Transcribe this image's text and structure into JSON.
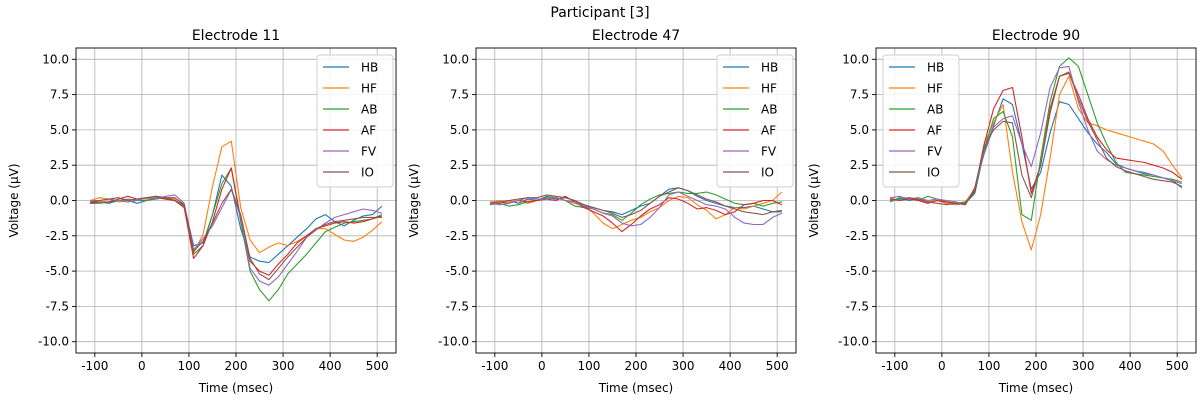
{
  "figure": {
    "suptitle": "Participant [3]"
  },
  "colors": {
    "HB": "#1f77b4",
    "HF": "#ff7f0e",
    "AB": "#2ca02c",
    "AF": "#d62728",
    "FV": "#9467bd",
    "IO": "#8c564b",
    "grid": "#b0b0b0",
    "axis": "#000000"
  },
  "chart_data": [
    {
      "type": "line",
      "title": "Electrode 11",
      "xlabel": "Time (msec)",
      "ylabel": "Voltage (µV)",
      "xlim": [
        -140,
        540
      ],
      "ylim": [
        -10.8,
        10.8
      ],
      "xticks": [
        -100,
        0,
        100,
        200,
        300,
        400,
        500
      ],
      "yticks": [
        -10.0,
        -7.5,
        -5.0,
        -2.5,
        0.0,
        2.5,
        5.0,
        7.5,
        10.0
      ],
      "grid": true,
      "legend_position": "top-right",
      "x": [
        -110,
        -90,
        -70,
        -50,
        -30,
        -10,
        10,
        30,
        50,
        70,
        90,
        110,
        130,
        150,
        170,
        190,
        210,
        230,
        250,
        270,
        290,
        310,
        330,
        350,
        370,
        390,
        410,
        430,
        450,
        470,
        490,
        510
      ],
      "series": [
        {
          "name": "HB",
          "values": [
            -0.1,
            -0.1,
            -0.2,
            0.0,
            0.0,
            -0.2,
            0.0,
            0.2,
            0.1,
            0.0,
            -0.3,
            -3.2,
            -3.0,
            -1.0,
            1.8,
            1.0,
            -2.0,
            -4.0,
            -4.3,
            -4.4,
            -3.8,
            -3.2,
            -2.6,
            -2.0,
            -1.3,
            -1.0,
            -1.5,
            -1.8,
            -1.4,
            -1.1,
            -1.0,
            -0.4
          ]
        },
        {
          "name": "HF",
          "values": [
            0.0,
            0.2,
            0.1,
            -0.1,
            0.0,
            0.1,
            0.1,
            0.3,
            0.2,
            0.1,
            -0.5,
            -3.7,
            -2.4,
            1.0,
            3.8,
            4.2,
            -0.5,
            -2.8,
            -3.7,
            -3.3,
            -3.0,
            -3.2,
            -2.9,
            -2.5,
            -2.0,
            -2.0,
            -2.4,
            -2.8,
            -2.9,
            -2.6,
            -2.1,
            -1.5
          ]
        },
        {
          "name": "AB",
          "values": [
            -0.2,
            -0.2,
            -0.1,
            0.0,
            0.1,
            0.0,
            0.0,
            0.1,
            0.2,
            0.0,
            -0.4,
            -3.8,
            -3.2,
            -1.0,
            1.2,
            2.3,
            -1.5,
            -5.0,
            -6.3,
            -7.1,
            -6.3,
            -5.2,
            -4.5,
            -3.8,
            -3.0,
            -2.2,
            -1.9,
            -1.6,
            -1.5,
            -1.4,
            -1.3,
            -1.0
          ]
        },
        {
          "name": "AF",
          "values": [
            -0.2,
            -0.1,
            -0.1,
            0.1,
            0.3,
            0.1,
            0.2,
            0.3,
            0.1,
            0.0,
            -0.5,
            -4.1,
            -3.2,
            -1.5,
            0.8,
            2.3,
            -1.3,
            -4.3,
            -5.0,
            -5.3,
            -4.5,
            -3.8,
            -3.0,
            -2.5,
            -2.0,
            -1.8,
            -1.6,
            -1.5,
            -1.6,
            -1.5,
            -1.3,
            -1.1
          ]
        },
        {
          "name": "FV",
          "values": [
            0.0,
            0.0,
            0.1,
            0.0,
            -0.1,
            0.0,
            0.2,
            0.1,
            0.3,
            0.4,
            -0.2,
            -3.5,
            -2.7,
            -1.8,
            -0.5,
            0.8,
            -1.2,
            -4.8,
            -5.7,
            -6.0,
            -5.4,
            -4.5,
            -3.6,
            -2.6,
            -2.1,
            -1.6,
            -1.2,
            -1.0,
            -0.8,
            -0.6,
            -0.7,
            -0.9
          ]
        },
        {
          "name": "IO",
          "values": [
            -0.1,
            0.0,
            0.1,
            0.2,
            0.0,
            0.1,
            0.2,
            0.3,
            0.2,
            0.2,
            -0.3,
            -3.6,
            -2.9,
            -1.6,
            -0.2,
            0.8,
            -1.0,
            -4.1,
            -5.2,
            -5.6,
            -4.8,
            -4.0,
            -3.3,
            -2.6,
            -2.0,
            -1.7,
            -1.5,
            -1.4,
            -1.3,
            -1.2,
            -1.2,
            -1.2
          ]
        }
      ]
    },
    {
      "type": "line",
      "title": "Electrode 47",
      "xlabel": "Time (msec)",
      "ylabel": "Voltage (µV)",
      "xlim": [
        -140,
        540
      ],
      "ylim": [
        -10.8,
        10.8
      ],
      "xticks": [
        -100,
        0,
        100,
        200,
        300,
        400,
        500
      ],
      "yticks": [
        -10.0,
        -7.5,
        -5.0,
        -2.5,
        0.0,
        2.5,
        5.0,
        7.5,
        10.0
      ],
      "grid": true,
      "legend_position": "top-right",
      "x": [
        -110,
        -90,
        -70,
        -50,
        -30,
        -10,
        10,
        30,
        50,
        70,
        90,
        110,
        130,
        150,
        170,
        190,
        210,
        230,
        250,
        270,
        290,
        310,
        330,
        350,
        370,
        390,
        410,
        430,
        450,
        470,
        490,
        510
      ],
      "series": [
        {
          "name": "HB",
          "values": [
            -0.2,
            -0.1,
            0.0,
            -0.2,
            0.1,
            0.0,
            0.2,
            0.1,
            0.2,
            0.0,
            -0.4,
            -0.5,
            -0.7,
            -0.8,
            -1.0,
            -0.7,
            -0.4,
            -0.2,
            0.3,
            0.8,
            0.9,
            0.7,
            0.3,
            0.0,
            -0.2,
            -0.4,
            -0.5,
            -0.5,
            -0.4,
            -0.6,
            -0.8,
            -0.8
          ]
        },
        {
          "name": "HF",
          "values": [
            -0.1,
            0.0,
            -0.1,
            0.0,
            -0.2,
            0.0,
            0.1,
            0.2,
            0.0,
            -0.2,
            -0.4,
            -0.9,
            -1.6,
            -2.0,
            -1.7,
            -1.4,
            -1.2,
            -0.8,
            -0.5,
            0.0,
            0.3,
            0.2,
            -0.3,
            -0.7,
            -1.3,
            -1.0,
            -0.5,
            -0.6,
            -0.4,
            -0.2,
            0.0,
            0.6
          ]
        },
        {
          "name": "AB",
          "values": [
            -0.3,
            -0.2,
            -0.4,
            -0.3,
            -0.1,
            0.0,
            0.3,
            0.2,
            0.0,
            -0.4,
            -0.5,
            -0.6,
            -0.9,
            -1.0,
            -1.4,
            -0.9,
            -0.3,
            0.1,
            0.4,
            0.5,
            0.6,
            0.5,
            0.5,
            0.6,
            0.4,
            0.1,
            -0.2,
            -0.3,
            -0.2,
            -0.4,
            -0.2,
            -0.1
          ]
        },
        {
          "name": "AF",
          "values": [
            -0.2,
            -0.1,
            -0.2,
            0.0,
            -0.1,
            0.0,
            0.1,
            0.0,
            0.3,
            -0.1,
            -0.5,
            -0.8,
            -1.1,
            -1.6,
            -2.2,
            -1.7,
            -1.1,
            -0.6,
            -0.3,
            0.2,
            0.1,
            -0.2,
            -0.6,
            -0.5,
            -0.7,
            -1.0,
            -0.8,
            -0.3,
            -0.2,
            0.0,
            0.0,
            -0.3
          ]
        },
        {
          "name": "FV",
          "values": [
            -0.2,
            -0.3,
            -0.2,
            0.0,
            0.2,
            0.1,
            0.1,
            0.2,
            0.0,
            -0.1,
            -0.4,
            -0.6,
            -0.9,
            -1.1,
            -1.6,
            -1.8,
            -1.7,
            -1.2,
            -0.5,
            0.4,
            0.6,
            0.3,
            0.0,
            -0.3,
            -0.4,
            -0.6,
            -1.2,
            -1.6,
            -1.7,
            -1.7,
            -1.2,
            -0.9
          ]
        },
        {
          "name": "IO",
          "values": [
            -0.2,
            -0.1,
            0.0,
            0.1,
            0.2,
            0.2,
            0.4,
            0.3,
            0.2,
            0.0,
            -0.3,
            -0.5,
            -0.7,
            -0.9,
            -1.2,
            -1.0,
            -0.7,
            -0.2,
            0.3,
            0.6,
            0.9,
            0.7,
            0.4,
            0.1,
            -0.1,
            -0.4,
            -0.6,
            -0.8,
            -0.9,
            -1.0,
            -0.8,
            -0.7
          ]
        }
      ]
    },
    {
      "type": "line",
      "title": "Electrode 90",
      "xlabel": "Time (msec)",
      "ylabel": "Voltage (µV)",
      "xlim": [
        -140,
        540
      ],
      "ylim": [
        -10.8,
        10.8
      ],
      "xticks": [
        -100,
        0,
        100,
        200,
        300,
        400,
        500
      ],
      "yticks": [
        -10.0,
        -7.5,
        -5.0,
        -2.5,
        0.0,
        2.5,
        5.0,
        7.5,
        10.0
      ],
      "grid": true,
      "legend_position": "top-left",
      "x": [
        -110,
        -90,
        -70,
        -50,
        -30,
        -10,
        10,
        30,
        50,
        70,
        90,
        110,
        130,
        150,
        170,
        190,
        210,
        230,
        250,
        270,
        290,
        310,
        330,
        350,
        370,
        390,
        410,
        430,
        450,
        470,
        490,
        510
      ],
      "series": [
        {
          "name": "HB",
          "values": [
            -0.1,
            0.2,
            0.0,
            0.1,
            -0.1,
            0.0,
            -0.2,
            -0.3,
            -0.2,
            0.5,
            3.5,
            5.3,
            7.2,
            6.8,
            4.0,
            0.8,
            2.0,
            4.8,
            7.0,
            6.8,
            5.8,
            4.8,
            4.0,
            3.4,
            2.6,
            2.3,
            2.1,
            1.9,
            1.8,
            1.6,
            1.4,
            0.9
          ]
        },
        {
          "name": "HF",
          "values": [
            0.2,
            0.0,
            0.1,
            0.0,
            -0.1,
            0.0,
            -0.2,
            -0.3,
            -0.1,
            0.8,
            4.0,
            5.5,
            6.8,
            2.0,
            -1.5,
            -3.5,
            -1.0,
            3.0,
            7.5,
            8.8,
            6.5,
            5.5,
            5.3,
            5.0,
            4.8,
            4.6,
            4.4,
            4.2,
            4.0,
            3.5,
            2.5,
            1.6
          ]
        },
        {
          "name": "AB",
          "values": [
            0.0,
            0.1,
            0.2,
            0.0,
            0.3,
            0.1,
            -0.1,
            -0.2,
            -0.1,
            0.6,
            3.6,
            5.8,
            6.3,
            4.5,
            -1.0,
            -1.4,
            3.0,
            7.0,
            9.5,
            10.1,
            9.5,
            7.5,
            5.5,
            4.0,
            2.7,
            2.0,
            1.9,
            1.8,
            1.7,
            1.6,
            1.5,
            1.3
          ]
        },
        {
          "name": "AF",
          "values": [
            0.1,
            0.0,
            0.1,
            0.0,
            -0.2,
            0.0,
            -0.1,
            -0.2,
            -0.2,
            0.7,
            4.0,
            6.5,
            7.8,
            8.0,
            4.5,
            0.5,
            2.5,
            6.5,
            8.8,
            9.0,
            7.5,
            5.8,
            4.5,
            3.6,
            3.0,
            2.9,
            2.8,
            2.7,
            2.5,
            2.3,
            2.0,
            1.5
          ]
        },
        {
          "name": "FV",
          "values": [
            0.2,
            0.3,
            0.1,
            0.2,
            0.0,
            0.1,
            0.0,
            -0.1,
            -0.3,
            0.9,
            3.3,
            5.2,
            5.8,
            6.0,
            4.0,
            2.4,
            4.8,
            8.0,
            9.4,
            9.5,
            7.0,
            5.0,
            3.5,
            2.9,
            2.5,
            2.3,
            2.1,
            2.0,
            1.8,
            1.6,
            1.4,
            1.2
          ]
        },
        {
          "name": "IO",
          "values": [
            0.1,
            0.0,
            0.2,
            0.1,
            -0.1,
            -0.2,
            -0.3,
            -0.2,
            -0.3,
            0.9,
            3.8,
            5.0,
            5.6,
            5.5,
            1.8,
            0.2,
            2.5,
            6.2,
            8.8,
            9.1,
            7.2,
            5.6,
            4.3,
            3.0,
            2.4,
            2.1,
            1.9,
            1.7,
            1.5,
            1.4,
            1.3,
            1.0
          ]
        }
      ]
    }
  ]
}
